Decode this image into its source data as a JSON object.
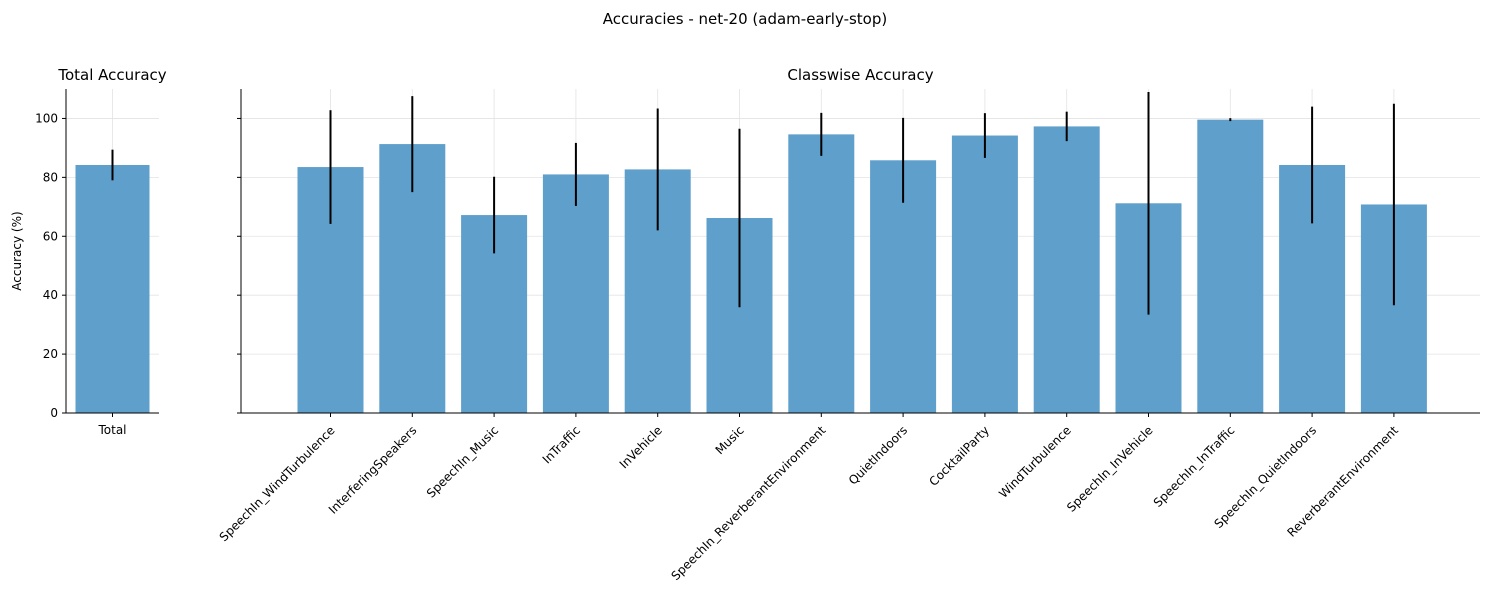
{
  "figure": {
    "suptitle": "Accuracies - net-20 (adam-early-stop)"
  },
  "colors": {
    "bar": "#5f9fcb",
    "error_bar": "#000000",
    "grid": "#e3e3e3",
    "axis": "#000000"
  },
  "chart_data": [
    {
      "type": "bar",
      "title": "Total Accuracy",
      "ylabel": "Accuracy (%)",
      "xlabel": "",
      "categories": [
        "Total"
      ],
      "values": [
        84.2
      ],
      "errors": [
        5.2
      ],
      "ylim": [
        0,
        110
      ],
      "yticks": [
        0,
        20,
        40,
        60,
        80,
        100
      ],
      "grid": true
    },
    {
      "type": "bar",
      "title": "Classwise Accuracy",
      "ylabel": "",
      "xlabel": "",
      "categories": [
        "SpeechIn_WindTurbulence",
        "InterferingSpeakers",
        "SpeechIn_Music",
        "InTraffic",
        "InVehicle",
        "Music",
        "SpeechIn_ReverberantEnvironment",
        "QuietIndoors",
        "CocktailParty",
        "WindTurbulence",
        "SpeechIn_InVehicle",
        "SpeechIn_InTraffic",
        "SpeechIn_QuietIndoors",
        "ReverberantEnvironment"
      ],
      "values": [
        83.5,
        91.3,
        67.2,
        81.0,
        82.7,
        66.2,
        94.6,
        85.8,
        94.2,
        97.3,
        71.2,
        99.6,
        84.2,
        70.8
      ],
      "errors": [
        19.3,
        16.3,
        13.0,
        10.7,
        20.7,
        30.3,
        7.3,
        14.4,
        7.6,
        5.0,
        37.8,
        0.5,
        19.8,
        34.2
      ],
      "ylim": [
        0,
        110
      ],
      "yticks": [
        0,
        20,
        40,
        60,
        80,
        100
      ],
      "grid": true
    }
  ]
}
